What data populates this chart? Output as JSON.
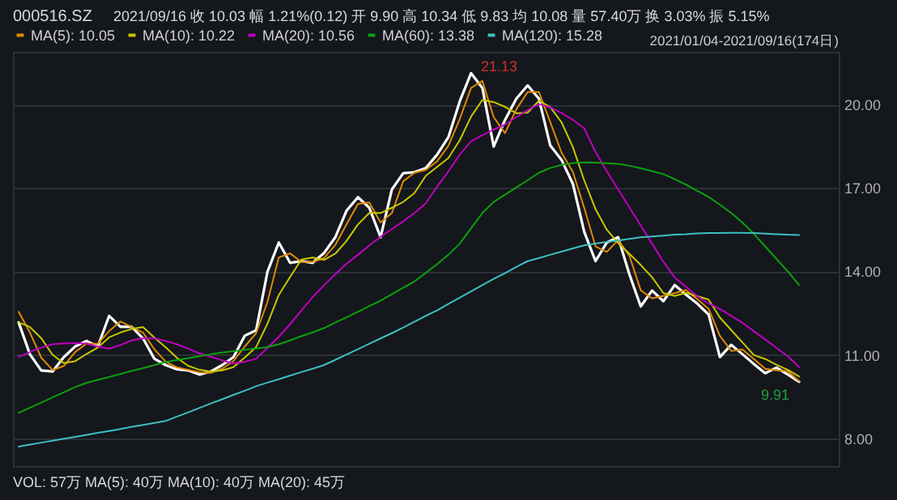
{
  "chart_data": {
    "type": "line",
    "title": "000516.SZ",
    "subtitle": "2021/09/16 收 10.03 幅 1.21%(0.12) 开 9.90 高 10.34 低 9.83 均 10.08 量 57.40万 换 3.03% 振 5.15%",
    "categories": [
      null,
      null,
      null,
      null,
      null,
      null,
      null,
      null,
      null,
      null,
      null,
      null,
      null,
      null,
      null,
      null,
      null,
      null,
      null,
      null,
      null,
      null,
      null,
      null,
      null,
      null,
      null,
      null,
      null,
      null,
      null,
      null,
      null,
      null,
      null,
      null,
      null,
      null,
      null,
      null,
      null,
      null,
      null,
      null,
      null,
      null,
      null,
      null,
      null,
      null,
      null,
      null,
      null,
      null,
      null,
      null,
      null,
      null,
      null,
      null,
      null,
      null,
      null,
      null,
      null,
      null,
      null,
      null,
      null,
      null
    ],
    "series": [
      {
        "color": "#ffffff",
        "values": [
          12.17,
          11.02,
          10.44,
          10.4,
          10.92,
          11.3,
          11.5,
          11.3,
          12.4,
          12.01,
          12.01,
          11.59,
          10.86,
          10.63,
          10.48,
          10.44,
          10.29,
          10.4,
          10.63,
          10.92,
          11.69,
          11.88,
          13.99,
          15.04,
          14.31,
          14.37,
          14.31,
          14.66,
          15.23,
          16.19,
          16.67,
          16.29,
          15.23,
          16.95,
          17.53,
          17.57,
          17.72,
          18.2,
          18.83,
          20.12,
          21.13,
          20.6,
          18.49,
          19.45,
          20.21,
          20.69,
          20.21,
          18.53,
          18.01,
          17.15,
          15.43,
          14.37,
          15.04,
          15.23,
          13.89,
          12.74,
          13.31,
          12.93,
          13.51,
          13.16,
          12.84,
          12.45,
          10.92,
          11.36,
          11.02,
          10.67,
          10.34,
          10.54,
          10.29,
          10.03
        ]
      },
      {
        "name": "MA(5): 10.05",
        "color": "#e08a00",
        "values": [
          12.55,
          11.8,
          10.9,
          10.45,
          10.6,
          11.1,
          11.4,
          11.4,
          11.85,
          12.2,
          12.0,
          11.8,
          11.2,
          10.75,
          10.55,
          10.46,
          10.37,
          10.35,
          10.5,
          10.78,
          11.3,
          11.78,
          12.9,
          14.5,
          14.65,
          14.34,
          14.34,
          14.48,
          14.95,
          15.7,
          16.43,
          16.48,
          15.76,
          16.1,
          17.24,
          17.55,
          17.65,
          17.96,
          18.52,
          19.48,
          20.6,
          20.85,
          19.55,
          18.97,
          19.83,
          20.45,
          20.45,
          19.37,
          18.27,
          17.58,
          16.29,
          14.9,
          14.7,
          15.13,
          14.56,
          13.32,
          13.03,
          13.12,
          13.22,
          13.33,
          13.0,
          12.65,
          11.68,
          11.14,
          11.19,
          10.85,
          10.5,
          10.44,
          10.41,
          10.05
        ]
      },
      {
        "name": "MA(10): 10.22",
        "color": "#c8c800",
        "values": [
          12.17,
          12.0,
          11.6,
          11.0,
          10.7,
          10.77,
          11.03,
          11.26,
          11.63,
          11.8,
          11.93,
          12.0,
          11.62,
          11.27,
          10.89,
          10.6,
          10.46,
          10.4,
          10.44,
          10.56,
          10.91,
          11.28,
          12.12,
          13.15,
          13.8,
          14.43,
          14.5,
          14.41,
          14.64,
          15.1,
          15.69,
          16.1,
          16.1,
          16.29,
          16.5,
          16.82,
          17.44,
          17.76,
          18.08,
          18.72,
          19.57,
          20.17,
          20.09,
          19.92,
          19.69,
          19.71,
          20.14,
          19.91,
          19.36,
          18.47,
          17.28,
          16.24,
          15.5,
          15.02,
          14.63,
          14.23,
          13.79,
          13.22,
          13.12,
          13.23,
          13.11,
          12.99,
          12.34,
          11.89,
          11.44,
          10.99,
          10.85,
          10.64,
          10.46,
          10.22
        ]
      },
      {
        "name": "MA(20): 10.56",
        "color": "#c000c0",
        "values": [
          10.92,
          11.1,
          11.26,
          11.38,
          11.41,
          11.42,
          11.4,
          11.3,
          11.22,
          11.35,
          11.52,
          11.59,
          11.59,
          11.5,
          11.38,
          11.22,
          11.05,
          10.93,
          10.8,
          10.69,
          10.75,
          10.86,
          11.25,
          11.65,
          12.1,
          12.6,
          13.08,
          13.5,
          13.9,
          14.28,
          14.6,
          14.93,
          15.25,
          15.52,
          15.8,
          16.1,
          16.45,
          17.05,
          17.6,
          18.2,
          18.68,
          18.9,
          19.1,
          19.28,
          19.55,
          19.8,
          20.02,
          19.9,
          19.7,
          19.45,
          19.15,
          18.3,
          17.6,
          16.95,
          16.3,
          15.65,
          15.0,
          14.35,
          13.78,
          13.45,
          13.1,
          12.85,
          12.65,
          12.4,
          12.15,
          11.85,
          11.55,
          11.25,
          10.95,
          10.56
        ]
      },
      {
        "name": "MA(60): 13.38",
        "color": "#0ca00c",
        "values": [
          8.91,
          9.1,
          9.28,
          9.47,
          9.65,
          9.84,
          9.99,
          10.1,
          10.2,
          10.31,
          10.42,
          10.52,
          10.63,
          10.74,
          10.81,
          10.88,
          10.95,
          11.02,
          11.08,
          11.13,
          11.18,
          11.23,
          11.28,
          11.38,
          11.52,
          11.67,
          11.81,
          11.96,
          12.16,
          12.35,
          12.55,
          12.75,
          12.95,
          13.18,
          13.41,
          13.64,
          13.95,
          14.26,
          14.6,
          15.0,
          15.55,
          16.1,
          16.5,
          16.76,
          17.02,
          17.28,
          17.55,
          17.72,
          17.83,
          17.9,
          17.92,
          17.91,
          17.89,
          17.87,
          17.8,
          17.71,
          17.61,
          17.5,
          17.32,
          17.12,
          16.9,
          16.68,
          16.4,
          16.1,
          15.75,
          15.35,
          14.9,
          14.45,
          14.0,
          13.51
        ]
      },
      {
        "name": "MA(120): 15.28",
        "color": "#3cc0c0",
        "values": [
          7.7,
          7.77,
          7.84,
          7.91,
          7.98,
          8.05,
          8.12,
          8.19,
          8.26,
          8.33,
          8.41,
          8.48,
          8.55,
          8.62,
          8.78,
          8.93,
          9.09,
          9.25,
          9.4,
          9.56,
          9.71,
          9.87,
          10.0,
          10.12,
          10.25,
          10.38,
          10.5,
          10.63,
          10.82,
          11.01,
          11.2,
          11.4,
          11.59,
          11.78,
          11.98,
          12.19,
          12.4,
          12.6,
          12.83,
          13.06,
          13.28,
          13.51,
          13.73,
          13.94,
          14.16,
          14.37,
          14.48,
          14.6,
          14.71,
          14.83,
          14.94,
          15.0,
          15.06,
          15.11,
          15.17,
          15.23,
          15.26,
          15.29,
          15.32,
          15.34,
          15.37,
          15.38,
          15.38,
          15.39,
          15.39,
          15.38,
          15.36,
          15.34,
          15.32,
          15.31
        ]
      }
    ],
    "ylim": [
      7.0,
      21.9
    ],
    "yticks": [
      {
        "value": 8,
        "label": "8.00"
      },
      {
        "value": 11,
        "label": "11.00"
      },
      {
        "value": 14,
        "label": "14.00"
      },
      {
        "value": 17,
        "label": "17.00"
      },
      {
        "value": 20,
        "label": "20.00"
      }
    ],
    "grid": "y",
    "legend": "top left",
    "tick_labels": "y",
    "marker": "none",
    "annotations": [
      "2021/01/04-2021/09/16(174日)",
      "VOL: 57万 MA(5): 40万 MA(10): 40万 MA(20): 45万",
      "21.13",
      "9.91"
    ]
  }
}
